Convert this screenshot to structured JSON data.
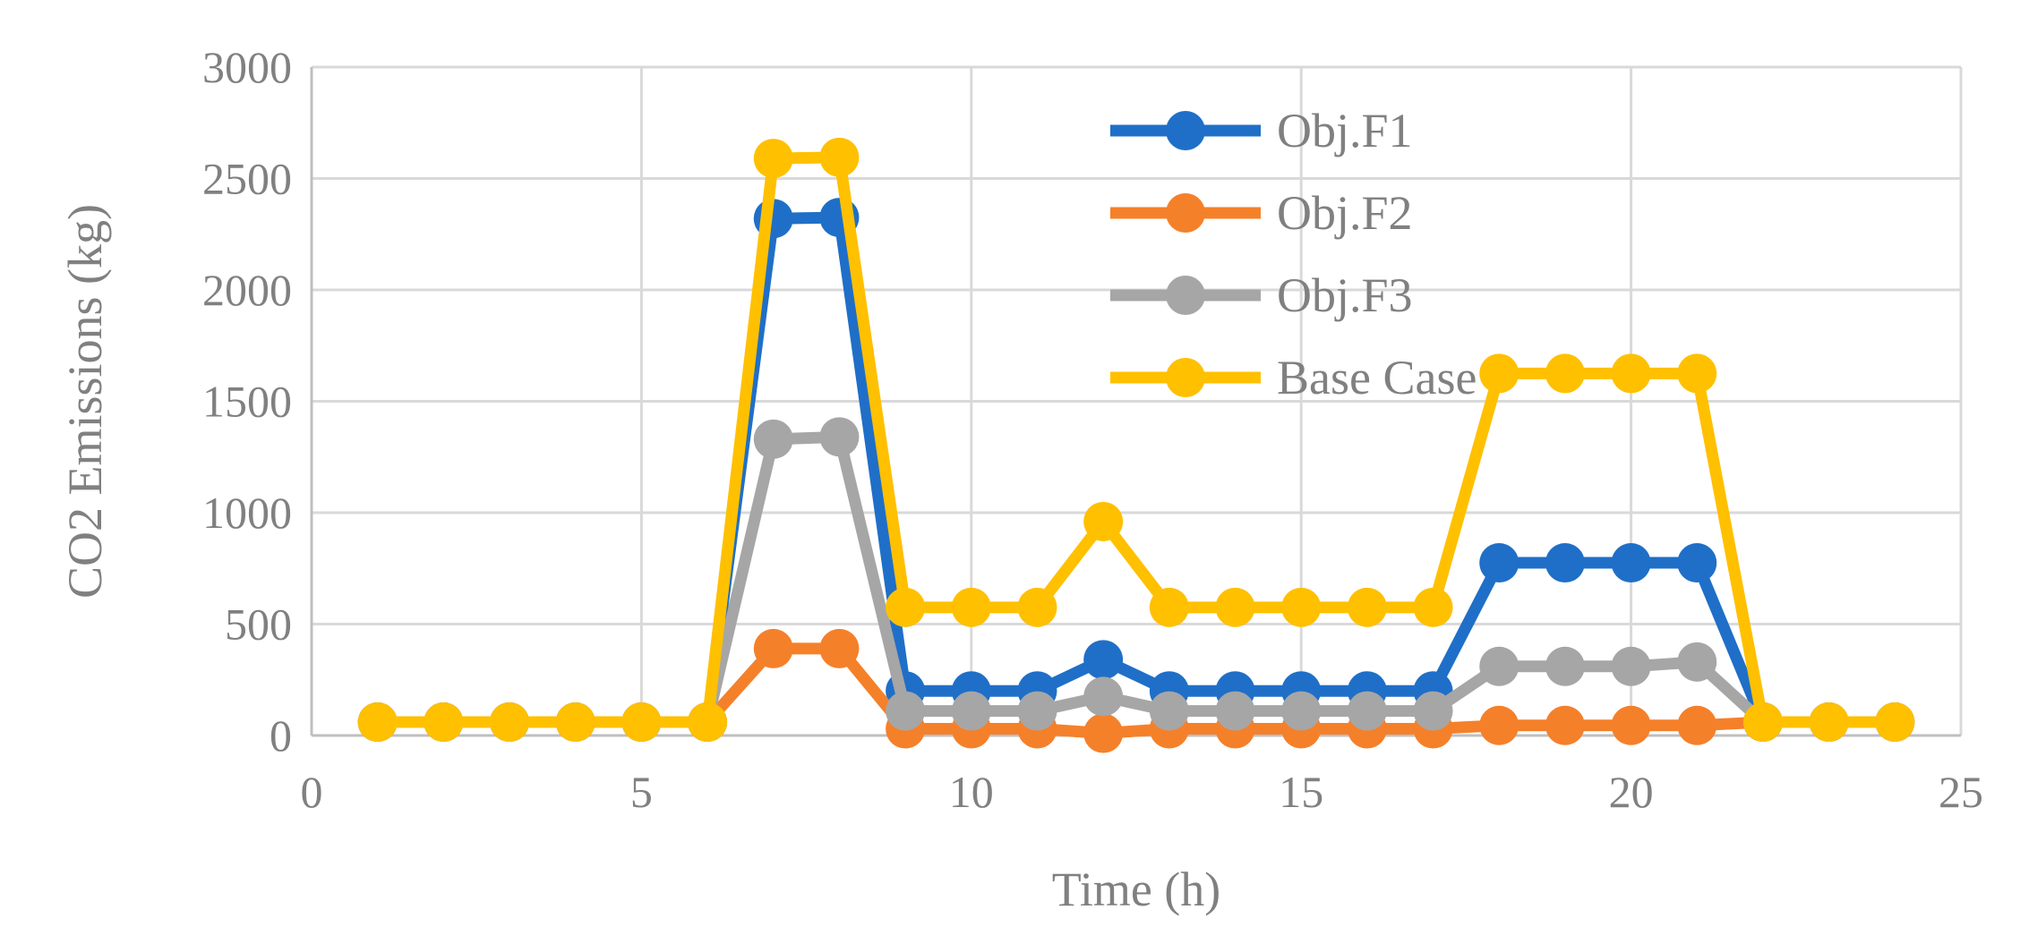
{
  "chart_data": {
    "type": "line",
    "title": "",
    "xlabel": "Time (h)",
    "ylabel": "CO2 Emissions (kg)",
    "xlim": [
      0,
      25
    ],
    "ylim": [
      0,
      3000
    ],
    "xticks": [
      0,
      5,
      10,
      15,
      20,
      25
    ],
    "yticks": [
      0,
      500,
      1000,
      1500,
      2000,
      2500,
      3000
    ],
    "grid": true,
    "legend_position": "top-center",
    "x": [
      1,
      2,
      3,
      4,
      5,
      6,
      7,
      8,
      9,
      10,
      11,
      12,
      13,
      14,
      15,
      16,
      17,
      18,
      19,
      20,
      21,
      22,
      23,
      24
    ],
    "series": [
      {
        "name": "Obj.F1",
        "color": "#1F6FC8",
        "values": [
          60,
          60,
          60,
          60,
          60,
          60,
          2320,
          2325,
          200,
          200,
          200,
          340,
          200,
          200,
          200,
          200,
          200,
          775,
          775,
          775,
          775,
          60,
          60,
          60
        ]
      },
      {
        "name": "Obj.F2",
        "color": "#F5802A",
        "values": [
          60,
          60,
          60,
          60,
          60,
          60,
          390,
          390,
          30,
          30,
          30,
          10,
          30,
          30,
          30,
          30,
          30,
          45,
          45,
          45,
          45,
          60,
          60,
          60
        ]
      },
      {
        "name": "Obj.F3",
        "color": "#A6A6A6",
        "values": [
          60,
          60,
          60,
          60,
          60,
          60,
          1330,
          1340,
          110,
          110,
          110,
          175,
          110,
          110,
          110,
          110,
          110,
          310,
          310,
          310,
          330,
          60,
          60,
          60
        ]
      },
      {
        "name": "Base Case",
        "color": "#FFC000",
        "values": [
          60,
          60,
          60,
          60,
          60,
          60,
          2590,
          2595,
          575,
          575,
          575,
          960,
          575,
          575,
          575,
          575,
          575,
          1625,
          1625,
          1625,
          1625,
          60,
          60,
          60
        ]
      }
    ]
  }
}
